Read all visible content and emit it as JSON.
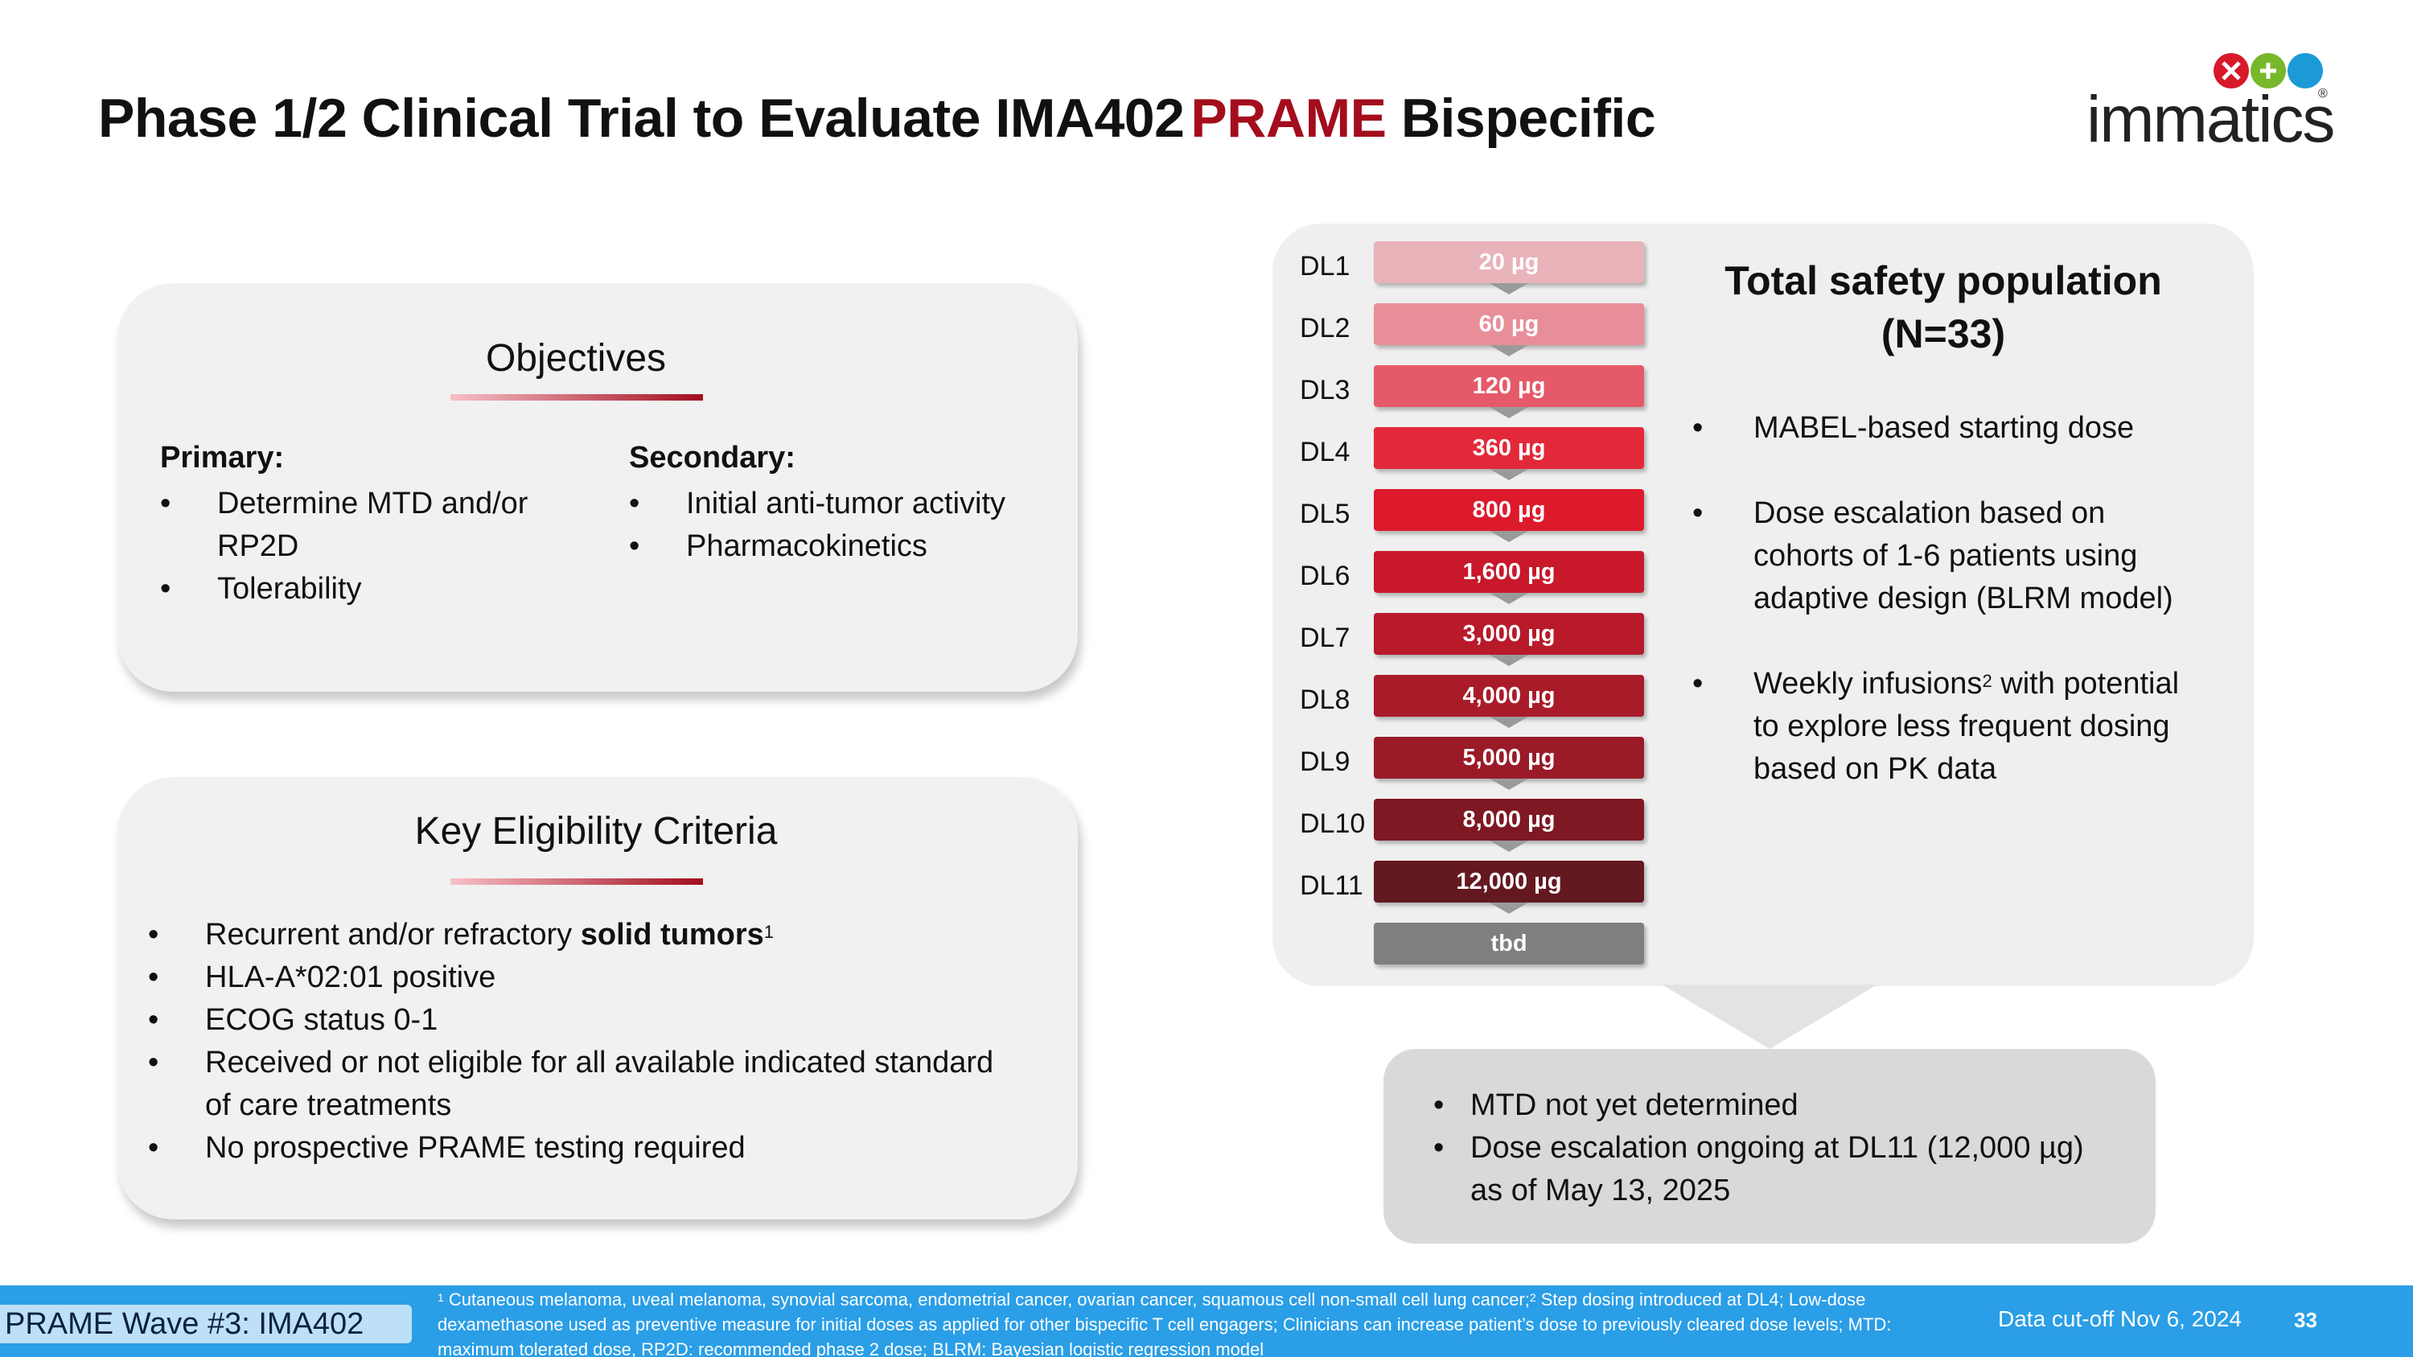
{
  "title": {
    "main": "Phase 1/2 Clinical Trial to Evaluate IMA402",
    "accent": "PRAME",
    "tail": " Bispecific"
  },
  "logo": {
    "text": "immatics",
    "reg": "®"
  },
  "objectives": {
    "heading": "Objectives",
    "primary": {
      "label": "Primary:",
      "items": [
        "Determine MTD and/or",
        "Tolerability"
      ],
      "item0_cont": "RP2D"
    },
    "secondary": {
      "label": "Secondary:",
      "items": [
        "Initial anti-tumor activity",
        "Pharmacokinetics"
      ]
    }
  },
  "eligibility": {
    "heading": "Key Eligibility Criteria",
    "item0_plain": "Recurrent and/or refractory ",
    "item0_bold": "solid tumors",
    "item0_sup": "1",
    "items": [
      "HLA-A*02:01 positive",
      "ECOG status 0-1",
      "Received or not eligible for all available indicated standard",
      "No prospective PRAME testing required"
    ],
    "item3_cont": "of care treatments"
  },
  "dose_levels": [
    {
      "label": "DL1",
      "dose": "20 µg",
      "color": "#e8b4b9"
    },
    {
      "label": "DL2",
      "dose": "60 µg",
      "color": "#e88e98"
    },
    {
      "label": "DL3",
      "dose": "120 µg",
      "color": "#e55a68"
    },
    {
      "label": "DL4",
      "dose": "360 µg",
      "color": "#e3283a"
    },
    {
      "label": "DL5",
      "dose": "800 µg",
      "color": "#dd1a2c"
    },
    {
      "label": "DL6",
      "dose": "1,600 µg",
      "color": "#c8182a"
    },
    {
      "label": "DL7",
      "dose": "3,000 µg",
      "color": "#b81a2a"
    },
    {
      "label": "DL8",
      "dose": "4,000 µg",
      "color": "#aa1b2a"
    },
    {
      "label": "DL9",
      "dose": "5,000 µg",
      "color": "#9a1a28"
    },
    {
      "label": "DL10",
      "dose": "8,000 µg",
      "color": "#7e1822"
    },
    {
      "label": "DL11",
      "dose": "12,000 µg",
      "color": "#641820"
    },
    {
      "label": "",
      "dose": "tbd",
      "color": "#7f7f7f"
    }
  ],
  "safety": {
    "heading_line1": "Total safety population",
    "heading_line2": "(N=33)",
    "b1": "MABEL-based starting dose",
    "b2_l1": "Dose escalation based on",
    "b2_l2": "cohorts of 1-6 patients using",
    "b2_l3": "adaptive design (BLRM model)",
    "b3_pre": "Weekly infusions",
    "b3_sup": "2",
    "b3_post": " with potential",
    "b3_l2": "to explore less frequent dosing",
    "b3_l3": "based on PK data"
  },
  "mtd": {
    "b1": "MTD not yet determined",
    "b2_l1": "Dose escalation ongoing at DL11 (12,000 µg)",
    "b2_l2": "as of May 13, 2025"
  },
  "footer": {
    "wave": "PRAME Wave #3: IMA402",
    "fn_sup1": "1",
    "fn_a": " Cutaneous melanoma, uveal melanoma, synovial sarcoma, endometrial cancer, ovarian cancer, squamous cell non-small cell lung cancer;",
    "fn_sup2": "2",
    "fn_b": " Step dosing introduced at DL4; Low-dose dexamethasone used as preventive measure for initial doses as applied for other bispecific T cell engagers; Clinicians can increase patient’s dose to previously cleared dose levels; MTD: maximum tolerated dose, RP2D: recommended phase 2 dose; BLRM: Bayesian logistic regression model",
    "cutoff": "Data cut-off Nov 6, 2024",
    "page": "33"
  }
}
